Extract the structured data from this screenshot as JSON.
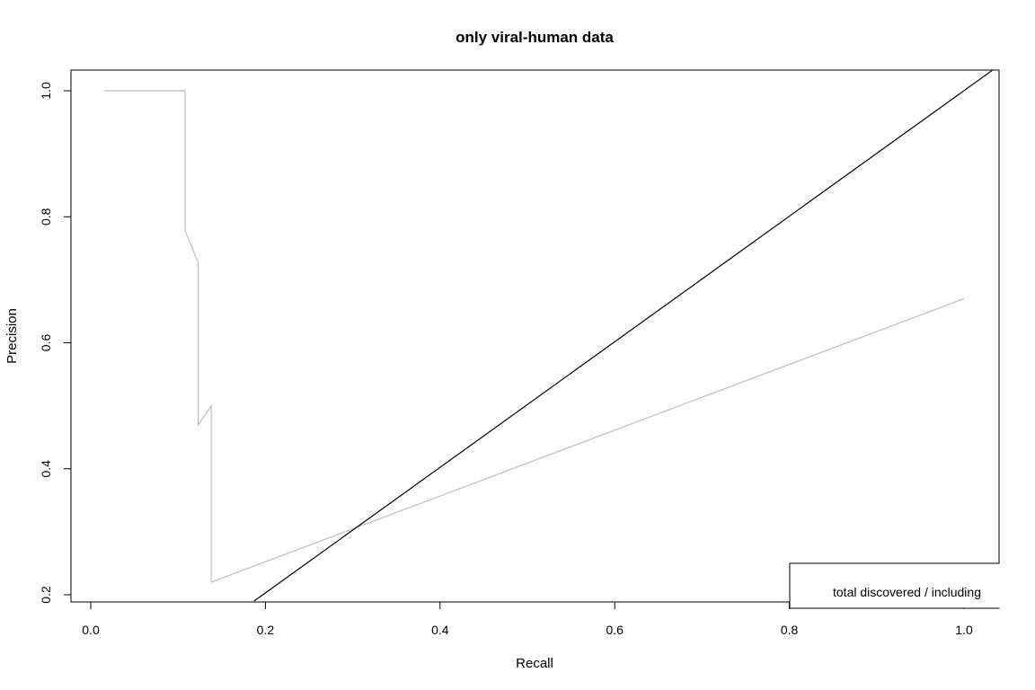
{
  "chart_data": {
    "type": "line",
    "title": "only viral-human data",
    "xlabel": "Recall",
    "ylabel": "Precision",
    "xlim": [
      -0.02,
      1.04
    ],
    "ylim": [
      0.19,
      1.03
    ],
    "x_ticks": [
      "0.0",
      "0.2",
      "0.4",
      "0.6",
      "0.8",
      "1.0"
    ],
    "y_ticks": [
      "0.2",
      "0.4",
      "0.6",
      "0.8",
      "1.0"
    ],
    "grid": false,
    "series": [
      {
        "color": "#bebebe",
        "points": [
          [
            0.015,
            1.0
          ],
          [
            0.108,
            1.0
          ],
          [
            0.108,
            0.778
          ],
          [
            0.123,
            0.727
          ],
          [
            0.123,
            0.47
          ],
          [
            0.138,
            0.5
          ],
          [
            0.138,
            0.22
          ],
          [
            1.0,
            0.67
          ]
        ]
      },
      {
        "color": "#000000",
        "points": [
          [
            0.187,
            0.19
          ],
          [
            1.04,
            1.04
          ]
        ]
      }
    ],
    "legend": {
      "position": "bottom-right",
      "text": "total discovered / including"
    }
  }
}
